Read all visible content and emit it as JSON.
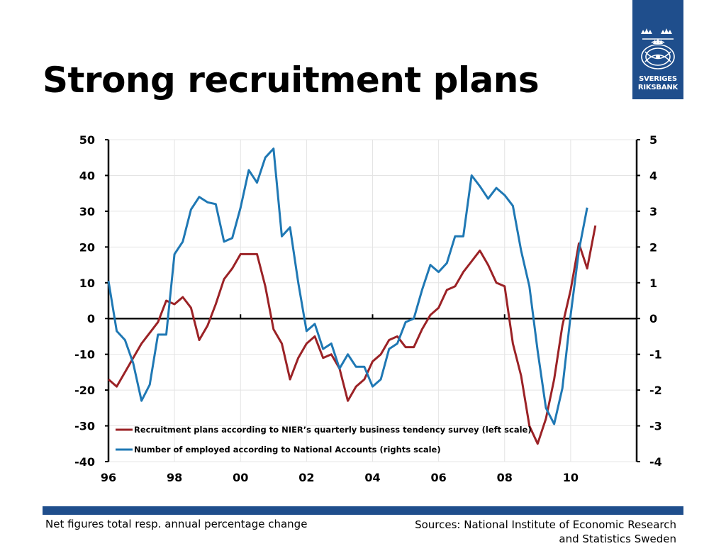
{
  "title": "Strong recruitment plans",
  "logo": {
    "line1": "SVERIGES",
    "line2": "RIKSBANK",
    "icon": "crown-icon"
  },
  "footer": {
    "left": "Net figures total resp. annual percentage change",
    "right_line1": "Sources: National Institute of Economic Research",
    "right_line2": "and Statistics Sweden"
  },
  "colors": {
    "recruitment": "#9b2226",
    "employed": "#1f78b4",
    "brand": "#1f4e8c"
  },
  "chart_data": {
    "type": "line",
    "title": "",
    "x_tick_labels": [
      "96",
      "98",
      "00",
      "02",
      "04",
      "06",
      "08",
      "10"
    ],
    "x_tick_values": [
      1996,
      1998,
      2000,
      2002,
      2004,
      2006,
      2008,
      2010
    ],
    "xlim": [
      1996,
      2012
    ],
    "ylim_left": [
      -40,
      50
    ],
    "ylim_right": [
      -4,
      5
    ],
    "yticks_left": [
      "50",
      "40",
      "30",
      "20",
      "10",
      "0",
      "-10",
      "-20",
      "-30",
      "-40"
    ],
    "yticks_right": [
      "5",
      "4",
      "3",
      "2",
      "1",
      "0",
      "-1",
      "-2",
      "-3",
      "-4"
    ],
    "grid": true,
    "legend_placement": "bottom-left",
    "series": [
      {
        "name": "Recruitment plans according to NIER’s quarterly business tendency survey (left scale)",
        "axis": "left",
        "x": [
          1996.0,
          1996.25,
          1996.5,
          1996.75,
          1997.0,
          1997.25,
          1997.5,
          1997.75,
          1998.0,
          1998.25,
          1998.5,
          1998.75,
          1999.0,
          1999.25,
          1999.5,
          1999.75,
          2000.0,
          2000.25,
          2000.5,
          2000.75,
          2001.0,
          2001.25,
          2001.5,
          2001.75,
          2002.0,
          2002.25,
          2002.5,
          2002.75,
          2003.0,
          2003.25,
          2003.5,
          2003.75,
          2004.0,
          2004.25,
          2004.5,
          2004.75,
          2005.0,
          2005.25,
          2005.5,
          2005.75,
          2006.0,
          2006.25,
          2006.5,
          2006.75,
          2007.0,
          2007.25,
          2007.5,
          2007.75,
          2008.0,
          2008.25,
          2008.5,
          2008.75,
          2009.0,
          2009.25,
          2009.5,
          2009.75,
          2010.0,
          2010.25,
          2010.5,
          2010.75
        ],
        "values": [
          -17,
          -19,
          -15,
          -11,
          -7,
          -4,
          -1,
          5,
          4,
          6,
          3,
          -6,
          -2,
          4,
          11,
          14,
          18,
          18,
          18,
          9,
          -3,
          -7,
          -17,
          -11,
          -7,
          -5,
          -11,
          -10,
          -14,
          -23,
          -19,
          -17,
          -12,
          -10,
          -6,
          -5,
          -8,
          -8,
          -3,
          1,
          3,
          8,
          9,
          13,
          16,
          19,
          15,
          10,
          9,
          -7,
          -16,
          -30,
          -35,
          -28,
          -17,
          -2,
          8,
          21,
          14,
          26
        ]
      },
      {
        "name": "Number of employed according to National Accounts (rights scale)",
        "axis": "right",
        "x": [
          1996.0,
          1996.25,
          1996.5,
          1996.75,
          1997.0,
          1997.25,
          1997.5,
          1997.75,
          1998.0,
          1998.25,
          1998.5,
          1998.75,
          1999.0,
          1999.25,
          1999.5,
          1999.75,
          2000.0,
          2000.25,
          2000.5,
          2000.75,
          2001.0,
          2001.25,
          2001.5,
          2001.75,
          2002.0,
          2002.25,
          2002.5,
          2002.75,
          2003.0,
          2003.25,
          2003.5,
          2003.75,
          2004.0,
          2004.25,
          2004.5,
          2004.75,
          2005.0,
          2005.25,
          2005.5,
          2005.75,
          2006.0,
          2006.25,
          2006.5,
          2006.75,
          2007.0,
          2007.25,
          2007.5,
          2007.75,
          2008.0,
          2008.25,
          2008.5,
          2008.75,
          2009.0,
          2009.25,
          2009.5,
          2009.75,
          2010.0,
          2010.25,
          2010.5
        ],
        "values": [
          1.05,
          -0.35,
          -0.6,
          -1.25,
          -2.3,
          -1.85,
          -0.45,
          -0.45,
          1.8,
          2.15,
          3.05,
          3.4,
          3.25,
          3.2,
          2.15,
          2.25,
          3.1,
          4.15,
          3.8,
          4.5,
          4.75,
          2.3,
          2.55,
          1.0,
          -0.35,
          -0.15,
          -0.85,
          -0.7,
          -1.4,
          -1.0,
          -1.35,
          -1.35,
          -1.9,
          -1.7,
          -0.85,
          -0.7,
          -0.1,
          0.0,
          0.8,
          1.5,
          1.3,
          1.55,
          2.3,
          2.3,
          4.0,
          3.7,
          3.35,
          3.65,
          3.45,
          3.15,
          1.9,
          0.9,
          -0.9,
          -2.5,
          -2.95,
          -1.95,
          0.1,
          1.9,
          3.1
        ]
      }
    ]
  }
}
